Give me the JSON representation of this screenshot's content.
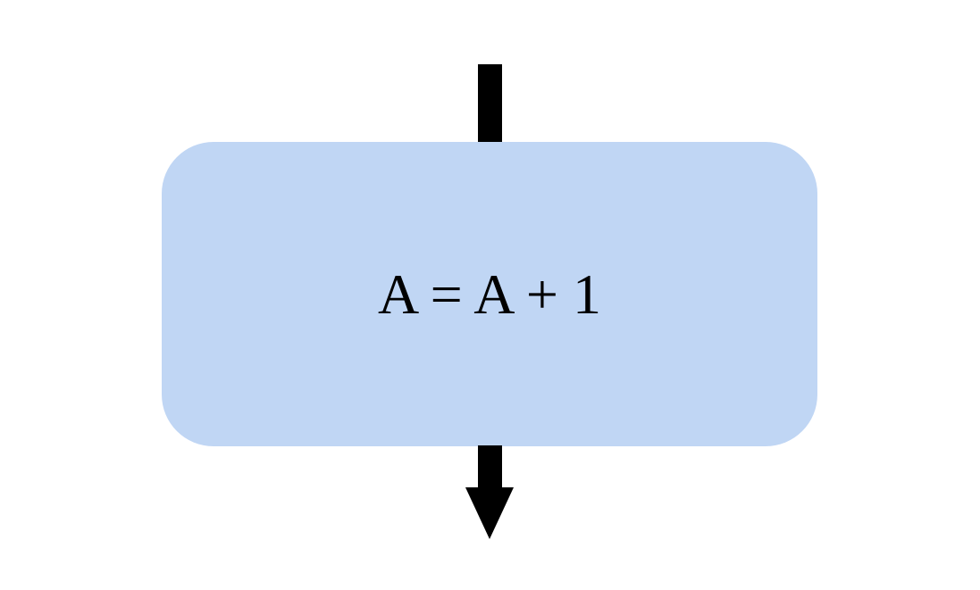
{
  "diagram": {
    "process": {
      "label": "A = A + 1",
      "fill_color": "#c0d6f4"
    },
    "arrows": {
      "color": "#000000",
      "incoming": "arrow-into-process",
      "outgoing": "arrow-out-of-process"
    }
  }
}
